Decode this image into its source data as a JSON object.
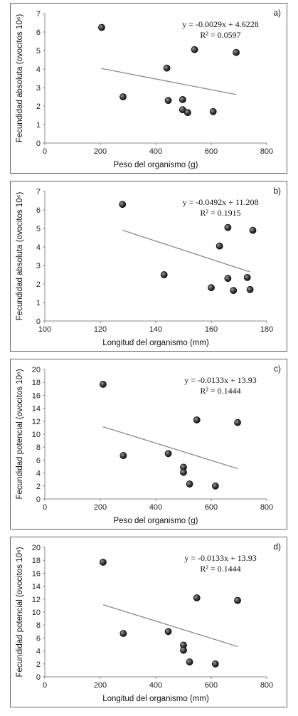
{
  "chart_data": [
    {
      "type": "scatter",
      "panel_label": "a)",
      "xlabel": "Peso del organismo (g)",
      "ylabel": "Fecundidad absoluta (ovocitos 10⁶)",
      "xlim": [
        0,
        800
      ],
      "ylim": [
        0,
        7
      ],
      "xticks": [
        "0",
        "200",
        "400",
        "600",
        "800"
      ],
      "yticks": [
        "0",
        "1",
        "2",
        "3",
        "4",
        "5",
        "6",
        "7"
      ],
      "points": [
        [
          205,
          6.25
        ],
        [
          282,
          2.5
        ],
        [
          440,
          4.05
        ],
        [
          445,
          2.3
        ],
        [
          497,
          2.35
        ],
        [
          497,
          1.8
        ],
        [
          515,
          1.65
        ],
        [
          540,
          5.05
        ],
        [
          607,
          1.7
        ],
        [
          690,
          4.9
        ]
      ],
      "trendline": {
        "slope": -0.0029,
        "intercept": 4.6228,
        "x_range": [
          205,
          690
        ]
      },
      "equation": "y = -0.0029x + 4.6228",
      "r2": "R² = 0.0597",
      "grid": false
    },
    {
      "type": "scatter",
      "panel_label": "b)",
      "xlabel": "Longitud del organismo (mm)",
      "ylabel": "Fecundidad absoluta (ovocitos 10⁶)",
      "xlim": [
        100,
        180
      ],
      "ylim": [
        0,
        7
      ],
      "xticks": [
        "100",
        "120",
        "140",
        "160",
        "180"
      ],
      "yticks": [
        "0",
        "1",
        "2",
        "3",
        "4",
        "5",
        "6",
        "7"
      ],
      "points": [
        [
          128,
          6.3
        ],
        [
          143,
          2.5
        ],
        [
          160,
          1.8
        ],
        [
          163,
          4.05
        ],
        [
          166,
          5.05
        ],
        [
          166,
          2.3
        ],
        [
          168,
          1.65
        ],
        [
          173,
          2.35
        ],
        [
          174,
          1.7
        ],
        [
          175,
          4.9
        ]
      ],
      "trendline": {
        "slope": -0.0492,
        "intercept": 11.208,
        "x_range": [
          128,
          174
        ]
      },
      "equation": "y = -0.0492x + 11.208",
      "r2": "R² = 0.1915",
      "grid": false
    },
    {
      "type": "scatter",
      "panel_label": "c)",
      "xlabel": "Peso del organismo (g)",
      "ylabel": "Fecundidad potencial (ovocitos 10⁶)",
      "xlim": [
        0,
        800
      ],
      "ylim": [
        0,
        20
      ],
      "xticks": [
        "0",
        "200",
        "400",
        "600",
        "800"
      ],
      "yticks": [
        "0",
        "2",
        "4",
        "6",
        "8",
        "10",
        "12",
        "14",
        "16",
        "18",
        "20"
      ],
      "points": [
        [
          210,
          17.7
        ],
        [
          283,
          6.7
        ],
        [
          445,
          7.0
        ],
        [
          500,
          4.9
        ],
        [
          500,
          4.1
        ],
        [
          522,
          2.3
        ],
        [
          548,
          12.2
        ],
        [
          615,
          2.0
        ],
        [
          695,
          11.8
        ]
      ],
      "trendline": {
        "slope": -0.0133,
        "intercept": 13.93,
        "x_range": [
          210,
          695
        ]
      },
      "equation": "y = -0.0133x + 13.93",
      "r2": "R² = 0.1444",
      "grid": false
    },
    {
      "type": "scatter",
      "panel_label": "d)",
      "xlabel": "Longitud del organismo (mm)",
      "ylabel": "Fecundidad potencial (ovocitos 10⁶)",
      "xlim": [
        0,
        800
      ],
      "ylim": [
        0,
        20
      ],
      "xticks": [
        "0",
        "200",
        "400",
        "600",
        "800"
      ],
      "yticks": [
        "0",
        "2",
        "4",
        "6",
        "8",
        "10",
        "12",
        "14",
        "16",
        "18",
        "20"
      ],
      "points": [
        [
          210,
          17.7
        ],
        [
          283,
          6.7
        ],
        [
          445,
          7.0
        ],
        [
          500,
          4.9
        ],
        [
          500,
          4.1
        ],
        [
          522,
          2.3
        ],
        [
          548,
          12.2
        ],
        [
          615,
          2.0
        ],
        [
          695,
          11.8
        ]
      ],
      "trendline": {
        "slope": -0.0133,
        "intercept": 13.93,
        "x_range": [
          210,
          695
        ]
      },
      "equation": "y = -0.0133x + 13.93",
      "r2": "R² = 0.1444",
      "grid": false
    }
  ]
}
